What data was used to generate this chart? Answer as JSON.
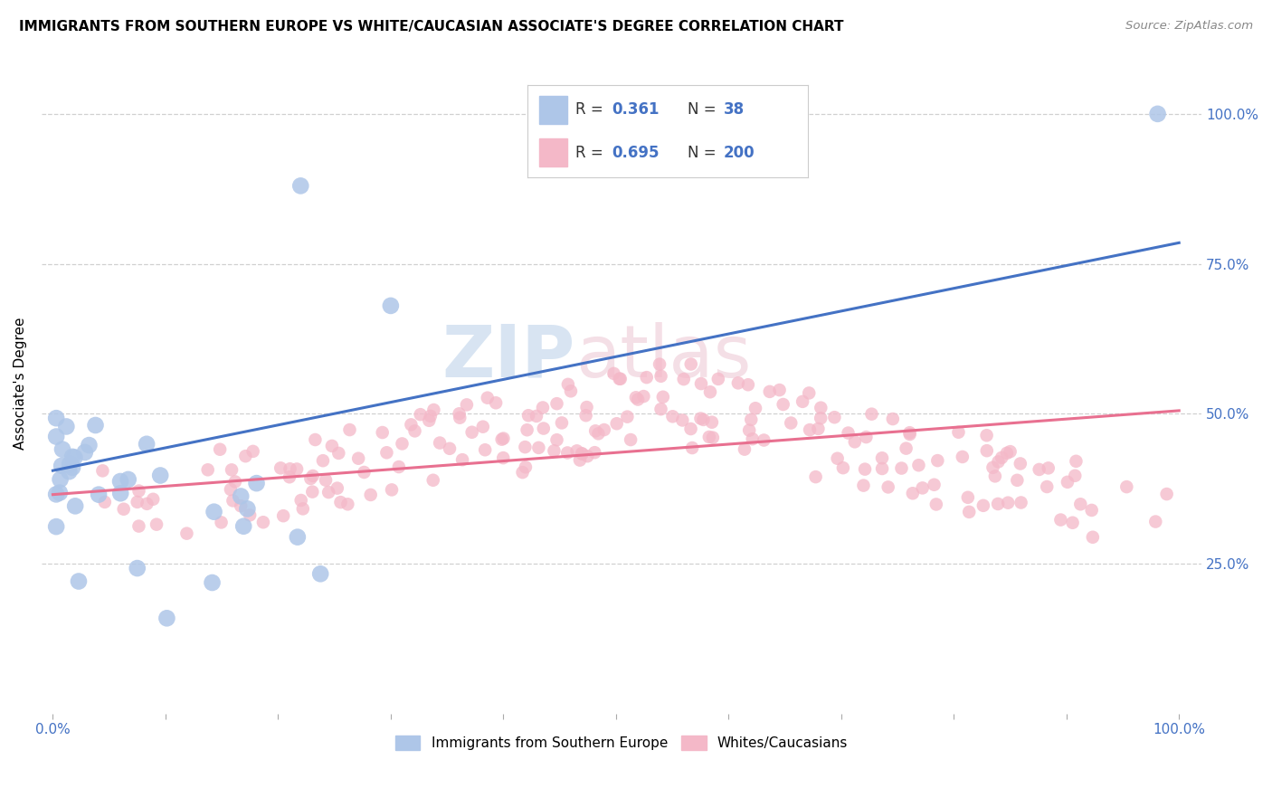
{
  "title": "IMMIGRANTS FROM SOUTHERN EUROPE VS WHITE/CAUCASIAN ASSOCIATE'S DEGREE CORRELATION CHART",
  "source": "Source: ZipAtlas.com",
  "ylabel": "Associate's Degree",
  "legend_label1": "Immigrants from Southern Europe",
  "legend_label2": "Whites/Caucasians",
  "r1": "0.361",
  "n1": "38",
  "r2": "0.695",
  "n2": "200",
  "color_blue_fill": "#aec6e8",
  "color_pink_fill": "#f4b8c8",
  "color_blue_line": "#4472C4",
  "color_pink_line": "#e87090",
  "color_blue_text": "#4472C4",
  "color_r_label": "#333333",
  "color_axis_labels": "#4472C4",
  "background_color": "#ffffff",
  "grid_color": "#d0d0d0",
  "blue_trend_x0": 0.0,
  "blue_trend_y0": 0.405,
  "blue_trend_x1": 1.0,
  "blue_trend_y1": 0.785,
  "pink_trend_x0": 0.0,
  "pink_trend_y0": 0.365,
  "pink_trend_x1": 1.0,
  "pink_trend_y1": 0.505,
  "xlim_min": -0.01,
  "xlim_max": 1.02,
  "ylim_min": 0.0,
  "ylim_max": 1.1,
  "xtick_positions": [
    0.0,
    0.1,
    0.2,
    0.3,
    0.4,
    0.5,
    0.6,
    0.7,
    0.8,
    0.9,
    1.0
  ],
  "ytick_positions": [
    0.25,
    0.5,
    0.75,
    1.0
  ],
  "ytick_labels": [
    "25.0%",
    "50.0%",
    "75.0%",
    "100.0%"
  ],
  "watermark_zip_color": "#b8cfe8",
  "watermark_atlas_color": "#e8b8c8"
}
